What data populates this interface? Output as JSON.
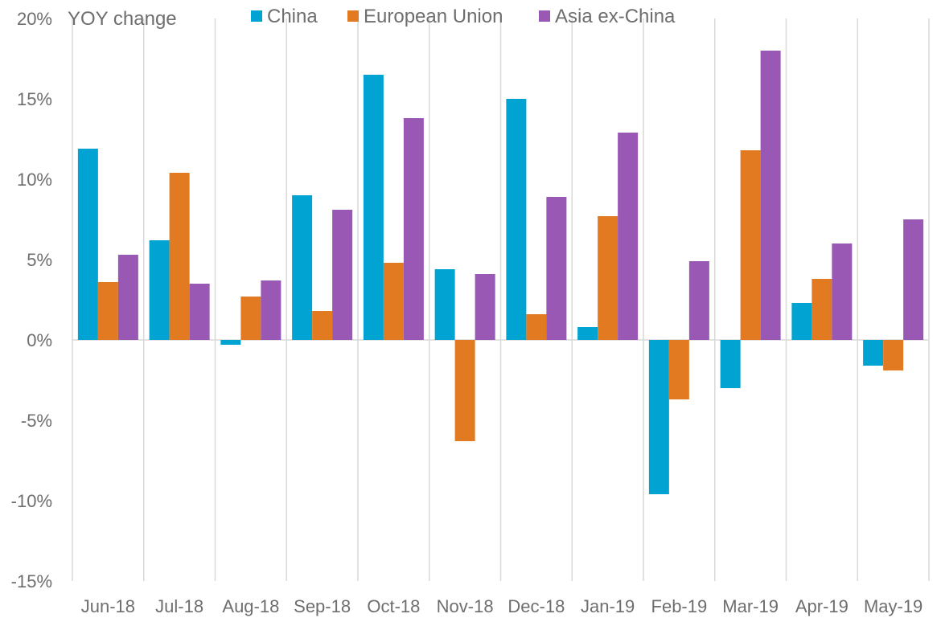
{
  "chart_data": {
    "type": "bar",
    "ylabel": "YOY change",
    "ylim": [
      -15,
      20
    ],
    "yticks": [
      20,
      15,
      10,
      5,
      0,
      -5,
      -10,
      -15
    ],
    "ytick_labels": [
      "20%",
      "15%",
      "10%",
      "5%",
      "0%",
      "-5%",
      "-10%",
      "-15%"
    ],
    "categories": [
      "Jun-18",
      "Jul-18",
      "Aug-18",
      "Sep-18",
      "Oct-18",
      "Nov-18",
      "Dec-18",
      "Jan-19",
      "Feb-19",
      "Mar-19",
      "Apr-19",
      "May-19"
    ],
    "legend_position": "top",
    "vertical_separators": true,
    "series": [
      {
        "name": "China",
        "color": "#00a3d1",
        "values": [
          11.9,
          6.2,
          -0.3,
          9.0,
          16.5,
          4.4,
          15.0,
          0.8,
          -9.6,
          -3.0,
          2.3,
          -1.6
        ]
      },
      {
        "name": "European Union",
        "color": "#e27a22",
        "values": [
          3.6,
          10.4,
          2.7,
          1.8,
          4.8,
          -6.3,
          1.6,
          7.7,
          -3.7,
          11.8,
          3.8,
          -1.9
        ]
      },
      {
        "name": "Asia ex-China",
        "color": "#9a58b5",
        "values": [
          5.3,
          3.5,
          3.7,
          8.1,
          13.8,
          4.1,
          8.9,
          12.9,
          4.9,
          18.0,
          6.0,
          7.5
        ]
      }
    ]
  }
}
